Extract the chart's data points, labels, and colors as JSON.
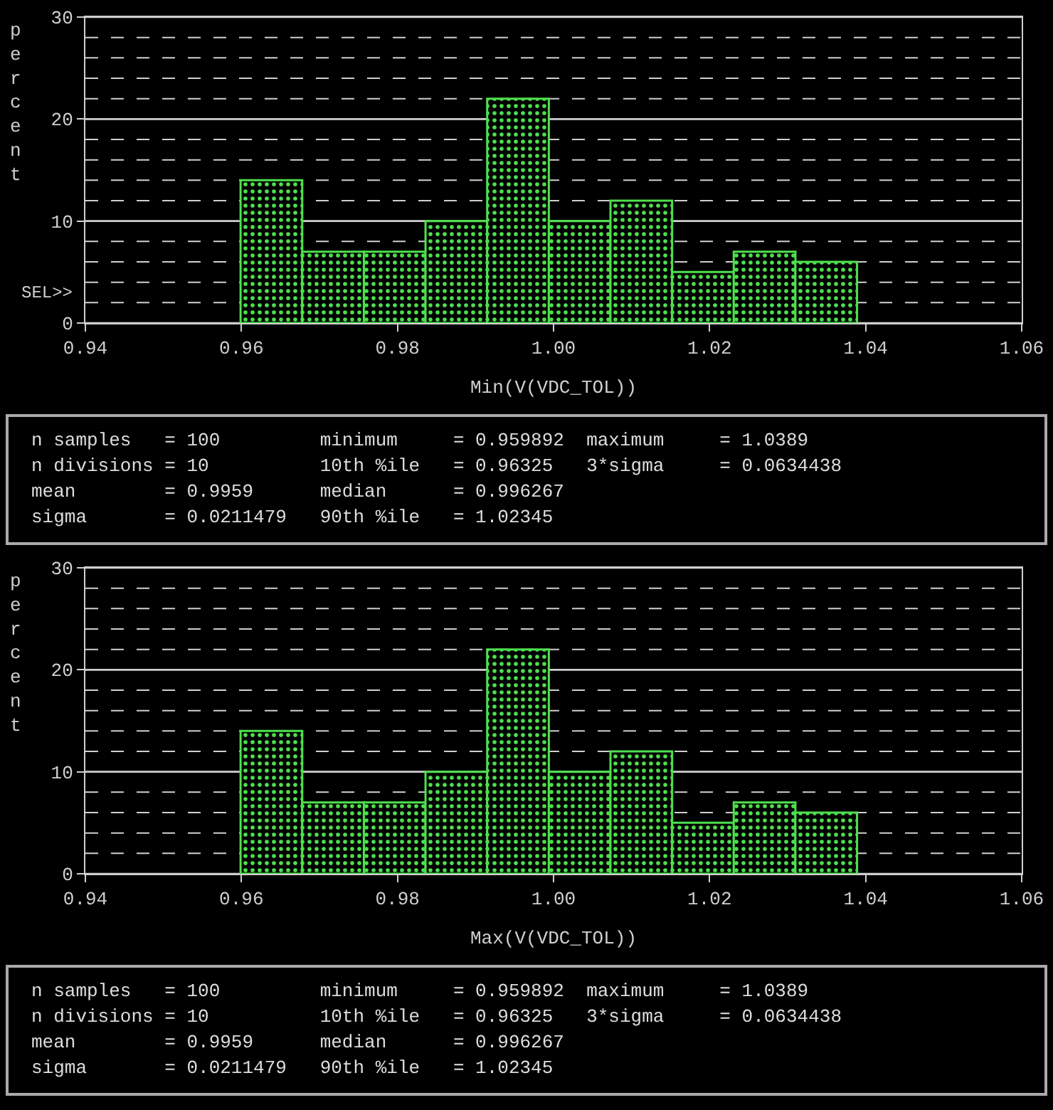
{
  "chart_data": [
    {
      "type": "histogram",
      "xlabel": "Min(V(VDC_TOL))",
      "ylabel": "percent",
      "color": "#4ee04e",
      "bins": [
        0.959892,
        0.967793,
        0.975694,
        0.983594,
        0.991495,
        0.999396,
        1.007297,
        1.015198,
        1.023098,
        1.030999,
        1.0389
      ],
      "values": [
        14,
        7,
        7,
        10,
        22,
        10,
        12,
        5,
        7,
        6
      ],
      "xlim": [
        0.94,
        1.06
      ],
      "xticks": [
        {
          "value": 0.94,
          "label": "0.94"
        },
        {
          "value": 0.96,
          "label": "0.96"
        },
        {
          "value": 0.98,
          "label": "0.98"
        },
        {
          "value": 1.0,
          "label": "1.00"
        },
        {
          "value": 1.02,
          "label": "1.02"
        },
        {
          "value": 1.04,
          "label": "1.04"
        },
        {
          "value": 1.06,
          "label": "1.06"
        }
      ],
      "ylim": [
        0,
        30
      ],
      "yticks": [
        0,
        {
          "value": 2,
          "label": null
        },
        {
          "value": 4,
          "label": null
        },
        {
          "value": 6,
          "label": null
        },
        {
          "value": 8,
          "label": null
        },
        10,
        {
          "value": 12,
          "label": null
        },
        {
          "value": 14,
          "label": null
        },
        {
          "value": 16,
          "label": null
        },
        {
          "value": 18,
          "label": null
        },
        20,
        {
          "value": 22,
          "label": null
        },
        {
          "value": 24,
          "label": null
        },
        {
          "value": 26,
          "label": null
        },
        {
          "value": 28,
          "label": null
        },
        30
      ],
      "grid": "y",
      "annotations": [
        "SEL>>"
      ]
    },
    {
      "type": "other",
      "annotations": [
        "n samples   = 100         minimum     = 0.959892  maximum     = 1.0389",
        "n divisions = 10          10th %ile   = 0.96325   3*sigma     = 0.0634438",
        "mean        = 0.9959      median      = 0.996267",
        "sigma       = 0.0211479   90th %ile   = 1.02345"
      ]
    },
    {
      "type": "histogram",
      "xlabel": "Max(V(VDC_TOL))",
      "ylabel": "percent",
      "color": "#4ee04e",
      "bins": [
        0.959892,
        0.967793,
        0.975694,
        0.983594,
        0.991495,
        0.999396,
        1.007297,
        1.015198,
        1.023098,
        1.030999,
        1.0389
      ],
      "values": [
        14,
        7,
        7,
        10,
        22,
        10,
        12,
        5,
        7,
        6
      ],
      "xlim": [
        0.94,
        1.06
      ],
      "xticks": [
        {
          "value": 0.94,
          "label": "0.94"
        },
        {
          "value": 0.96,
          "label": "0.96"
        },
        {
          "value": 0.98,
          "label": "0.98"
        },
        {
          "value": 1.0,
          "label": "1.00"
        },
        {
          "value": 1.02,
          "label": "1.02"
        },
        {
          "value": 1.04,
          "label": "1.04"
        },
        {
          "value": 1.06,
          "label": "1.06"
        }
      ],
      "ylim": [
        0,
        30
      ],
      "yticks": [
        0,
        {
          "value": 2,
          "label": null
        },
        {
          "value": 4,
          "label": null
        },
        {
          "value": 6,
          "label": null
        },
        {
          "value": 8,
          "label": null
        },
        10,
        {
          "value": 12,
          "label": null
        },
        {
          "value": 14,
          "label": null
        },
        {
          "value": 16,
          "label": null
        },
        {
          "value": 18,
          "label": null
        },
        20,
        {
          "value": 22,
          "label": null
        },
        {
          "value": 24,
          "label": null
        },
        {
          "value": 26,
          "label": null
        },
        {
          "value": 28,
          "label": null
        },
        30
      ],
      "grid": "y"
    },
    {
      "type": "other",
      "annotations": [
        "n samples   = 100         minimum     = 0.959892  maximum     = 1.0389",
        "n divisions = 10          10th %ile   = 0.96325   3*sigma     = 0.0634438",
        "mean        = 0.9959      median      = 0.996267",
        "sigma       = 0.0211479   90th %ile   = 1.02345"
      ]
    }
  ]
}
